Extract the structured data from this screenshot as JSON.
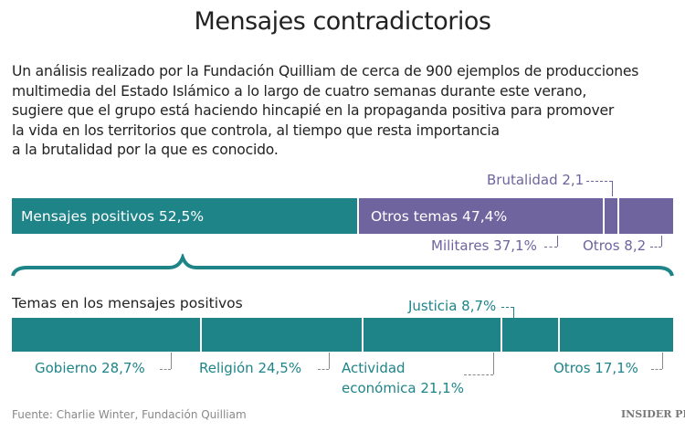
{
  "title": "Mensajes contradictorios",
  "intro": "Un análisis realizado por la Fundación Quilliam de cerca de 900 ejemplos de producciones multimedia del Estado Islámico a lo largo de cuatro semanas durante este verano, sugiere que el grupo está haciendo hincapié en la propaganda positiva para promover la vida en los territorios que controla, al tiempo que resta importancia a la brutalidad por la que es conocido.",
  "intro_lines": [
    "Un análisis realizado por la Fundación Quilliam de cerca de 900 ejemplos de producciones",
    "multimedia del Estado Islámico a lo largo de cuatro semanas durante este verano,",
    "sugiere que el grupo está haciendo hincapié en la propaganda positiva para promover",
    "la vida en los territorios que controla, al tiempo que resta importancia",
    "a la brutalidad por la que es conocido."
  ],
  "colors": {
    "positive": "#1e8488",
    "other": "#70649e"
  },
  "chart_data": [
    {
      "type": "bar",
      "orientation": "stacked-horizontal",
      "categories": [
        "Mensajes positivos",
        "Militares",
        "Brutalidad",
        "Otros"
      ],
      "values": [
        52.5,
        37.1,
        2.1,
        8.2
      ],
      "labels": {
        "positive": "Mensajes positivos 52,5%",
        "other_total": "Otros temas 47,4%",
        "militares": "Militares 37,1%",
        "brutalidad": "Brutalidad 2,1",
        "otros": "Otros 8,2"
      }
    },
    {
      "type": "bar",
      "orientation": "stacked-horizontal",
      "title": "Temas en los mensajes positivos",
      "categories": [
        "Gobierno",
        "Religión",
        "Actividad económica",
        "Justicia",
        "Otros"
      ],
      "values": [
        28.7,
        24.5,
        21.1,
        8.7,
        17.1
      ],
      "labels": {
        "gobierno": "Gobierno 28,7%",
        "religion": "Religión 24,5%",
        "actividad_1": "Actividad",
        "actividad_2": "económica 21,1%",
        "justicia": "Justicia 8,7%",
        "otros": "Otros 17,1%"
      }
    }
  ],
  "source": "Fuente: Charlie Winter, Fundación Quilliam",
  "logo": "INSIDER PRO"
}
